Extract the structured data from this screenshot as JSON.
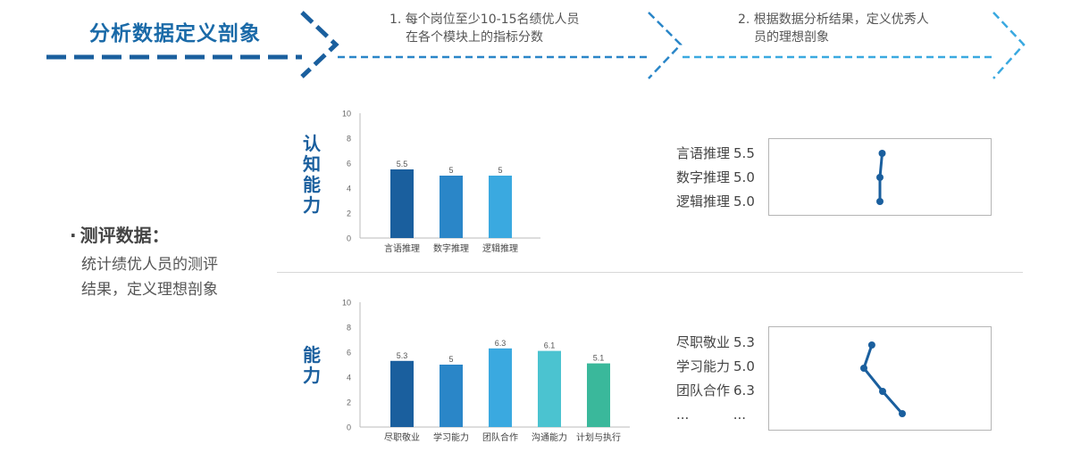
{
  "header": {
    "title": "分析数据定义剖象",
    "step1": {
      "line1": "1. 每个岗位至少10-15名绩优人员",
      "line2": "在各个模块上的指标分数"
    },
    "step2": {
      "line1": "2. 根据数据分析结果，定义优秀人",
      "line2": "员的理想剖象"
    },
    "colors": {
      "dark": "#1a5f9e",
      "mid": "#2a86c8",
      "light": "#3aa9e0"
    }
  },
  "left": {
    "bullet": "·",
    "heading": "测评数据：",
    "desc_line1": "统计绩优人员的测评",
    "desc_line2": "结果，定义理想剖象"
  },
  "section1": {
    "label": "认知能力",
    "scores": [
      {
        "name": "言语推理",
        "value": "5.5"
      },
      {
        "name": "数字推理",
        "value": "5.0"
      },
      {
        "name": "逻辑推理",
        "value": "5.0"
      }
    ],
    "profile_values": [
      5.5,
      5.0,
      5.0
    ]
  },
  "section2": {
    "label": "能力",
    "scores": [
      {
        "name": "尽职敬业",
        "value": "5.3"
      },
      {
        "name": "学习能力",
        "value": "5.0"
      },
      {
        "name": "团队合作",
        "value": "6.3"
      }
    ],
    "ellipsis_left": "...",
    "ellipsis_right": "...",
    "profile_values": [
      5.3,
      5.0,
      6.3,
      6.1,
      5.1
    ]
  },
  "chart_data": [
    {
      "type": "bar",
      "categories": [
        "言语推理",
        "数字推理",
        "逻辑推理"
      ],
      "values": [
        5.5,
        5,
        5
      ],
      "data_labels": [
        "5.5",
        "5",
        "5"
      ],
      "colors": [
        "#1a5f9e",
        "#2a86c8",
        "#3aa9e0"
      ],
      "ylim": [
        0,
        10
      ],
      "yticks": [
        0,
        2,
        4,
        6,
        8,
        10
      ],
      "grid": false
    },
    {
      "type": "bar",
      "categories": [
        "尽职敬业",
        "学习能力",
        "团队合作",
        "沟通能力",
        "计划与执行"
      ],
      "values": [
        5.3,
        5,
        6.3,
        6.1,
        5.1
      ],
      "data_labels": [
        "5.3",
        "5",
        "6.3",
        "6.1",
        "5.1"
      ],
      "colors": [
        "#1a5f9e",
        "#2a86c8",
        "#3aa9e0",
        "#4bc3d0",
        "#3ab89b"
      ],
      "ylim": [
        0,
        10
      ],
      "yticks": [
        0,
        2,
        4,
        6,
        8,
        10
      ],
      "grid": false
    }
  ]
}
